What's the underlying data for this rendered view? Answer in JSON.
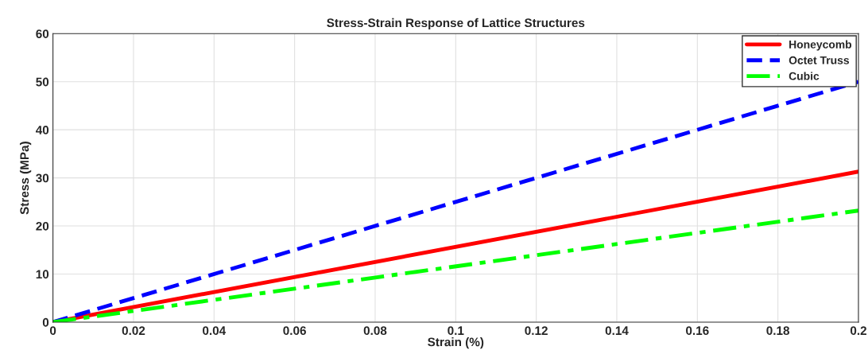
{
  "chart_data": {
    "type": "line",
    "title": "Stress-Strain Response of Lattice Structures",
    "xlabel": "Strain (%)",
    "ylabel": "Stress (MPa)",
    "x": [
      0,
      0.2
    ],
    "series": [
      {
        "name": "Honeycomb",
        "color": "#ff0000",
        "values": [
          0,
          31.3
        ],
        "line_style": "solid"
      },
      {
        "name": "Octet Truss",
        "color": "#0000ff",
        "values": [
          0,
          50
        ],
        "line_style": "dashed"
      },
      {
        "name": "Cubic",
        "color": "#00ff00",
        "values": [
          0,
          23.2
        ],
        "line_style": "dashdot"
      }
    ],
    "xlim": [
      0,
      0.2
    ],
    "ylim": [
      0,
      60
    ],
    "xticks": [
      0,
      0.02,
      0.04,
      0.06,
      0.08,
      0.1,
      0.12,
      0.14,
      0.16,
      0.18,
      0.2
    ],
    "yticks": [
      0,
      10,
      20,
      30,
      40,
      50,
      60
    ],
    "grid": true,
    "legend": "top right",
    "marker": "none"
  }
}
